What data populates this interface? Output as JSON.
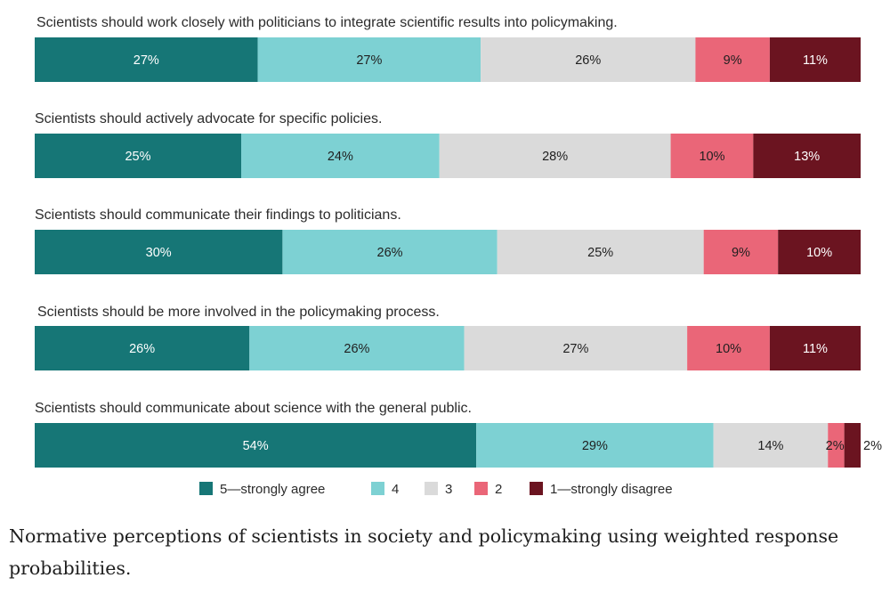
{
  "chart_data": {
    "type": "bar",
    "orientation": "horizontal",
    "stacked": true,
    "unit": "%",
    "categories": [
      "Scientists should work closely with politicians to integrate scientific results into policymaking.",
      "Scientists should actively advocate for specific policies.",
      "Scientists should communicate their findings to politicians.",
      "Scientists should be more involved in the policymaking process.",
      "Scientists should communicate about science with the general public."
    ],
    "series": [
      {
        "name": "5—strongly agree",
        "color": "#167676",
        "label_color": "#ffffff",
        "values": [
          27,
          25,
          30,
          26,
          54
        ]
      },
      {
        "name": "4",
        "color": "#7dd1d3",
        "label_color": "#1f1f1f",
        "values": [
          27,
          24,
          26,
          26,
          29
        ]
      },
      {
        "name": "3",
        "color": "#dadada",
        "label_color": "#1f1f1f",
        "values": [
          26,
          28,
          25,
          27,
          14
        ]
      },
      {
        "name": "2",
        "color": "#ea6678",
        "label_color": "#1f1f1f",
        "values": [
          9,
          10,
          9,
          10,
          2
        ]
      },
      {
        "name": "1—strongly disagree",
        "color": "#6b1420",
        "label_color": "#ffffff",
        "values": [
          11,
          13,
          10,
          11,
          2
        ]
      }
    ],
    "legend_position": "bottom"
  },
  "caption": "Normative perceptions of scientists in society and policymaking using weighted response probabilities."
}
